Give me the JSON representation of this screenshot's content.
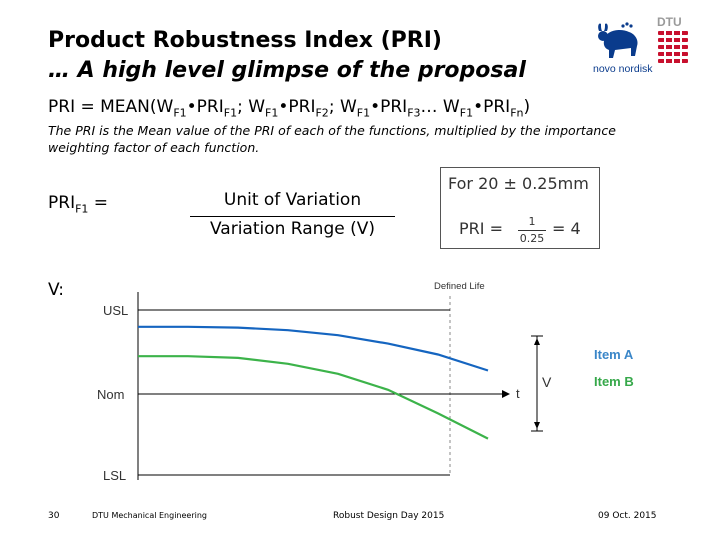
{
  "slide": {
    "title_line1": "Product Robustness Index (PRI)",
    "title_line2": "… A high level glimpse of the proposal",
    "formula": {
      "t1": "PRI = MEAN(W",
      "s1": "F1",
      "t2": "•PRI",
      "s2": "F1",
      "t3": "; W",
      "s3": "F1",
      "t4": "•PRI",
      "s4": "F2",
      "t5": "; W",
      "s5": "F1",
      "t6": "•PRI",
      "s6": "F3",
      "t7": "… W",
      "s7": "F1",
      "t8": "•PRI",
      "s8": "Fn",
      "t9": ")"
    },
    "description": "The PRI is the Mean value of the PRI of each of the functions, multiplied by the importance weighting factor of each function.",
    "pri_f1": {
      "label": "PRI",
      "sub": "F1",
      "eq": " ="
    },
    "fraction": {
      "numerator": "Unit of Variation",
      "denominator": "Variation Range (V)"
    },
    "example": {
      "for_text": "For 20 ± 0.25mm",
      "pri_text": "PRI =",
      "numerator": "1",
      "denominator": "0.25",
      "result": "= 4"
    },
    "v_label": "V:"
  },
  "logos": {
    "novo_nordisk": "novo nordisk",
    "dtu": "DTU"
  },
  "colors": {
    "item_a": "#1565c0",
    "item_b": "#3cb34a",
    "legend_a": "#3a86c8",
    "legend_b": "#36a84a",
    "novo_blue": "#0a3b8c",
    "dtu_red": "#c8102e"
  },
  "chart_data": {
    "type": "line",
    "y_tick_labels": [
      "USL",
      "Nom",
      "LSL"
    ],
    "x_annotation": "t",
    "top_annotation": "Defined Life",
    "range_annotation": "V",
    "series": [
      {
        "name": "Item A",
        "x": [
          0,
          1,
          2,
          3,
          4,
          5,
          6,
          7
        ],
        "y": [
          0.8,
          0.8,
          0.79,
          0.76,
          0.7,
          0.6,
          0.47,
          0.28
        ]
      },
      {
        "name": "Item B",
        "x": [
          0,
          1,
          2,
          3,
          4,
          5,
          6,
          7
        ],
        "y": [
          0.45,
          0.45,
          0.43,
          0.36,
          0.24,
          0.05,
          -0.24,
          -0.55
        ]
      }
    ]
  },
  "footer": {
    "page": "30",
    "dept": "DTU Mechanical Engineering",
    "event": "Robust Design Day 2015",
    "date": "09 Oct. 2015"
  }
}
